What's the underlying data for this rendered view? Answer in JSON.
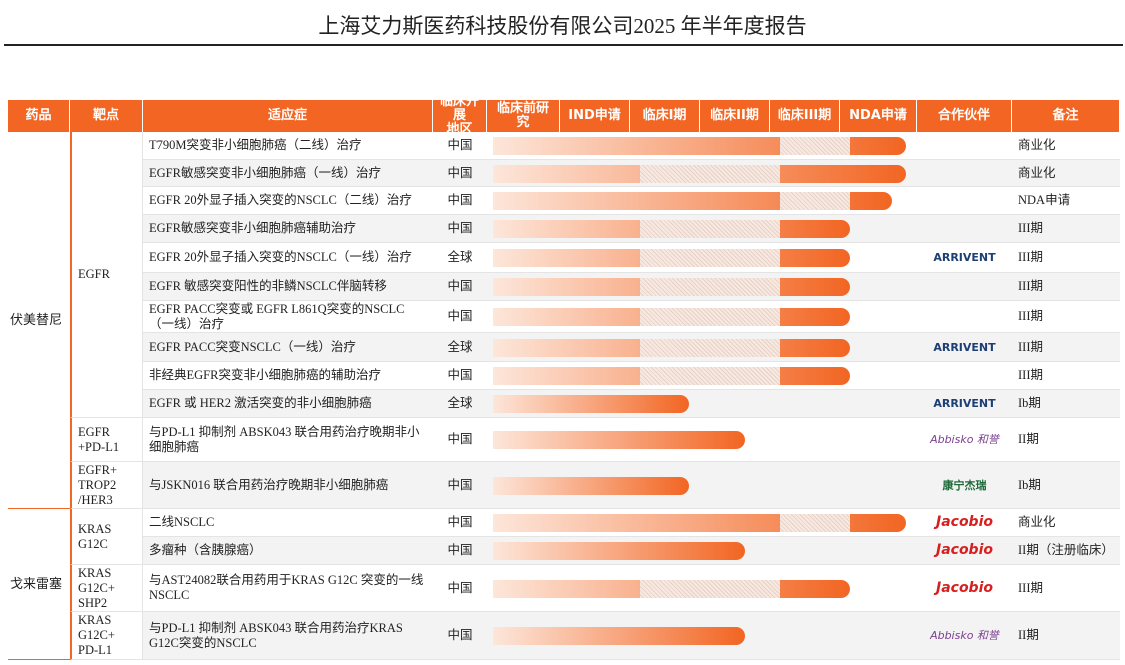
{
  "header": {
    "title": "上海艾力斯医药科技股份有限公司2025 年半年度报告"
  },
  "table": {
    "columns": [
      "药品",
      "靶点",
      "适应症",
      "临床开展\n地区",
      "临床前研究",
      "IND申请",
      "临床I期",
      "临床II期",
      "临床III期",
      "NDA申请",
      "合作伙伴",
      "备注"
    ],
    "drugs": [
      {
        "name": "伏美替尼",
        "targets": [
          {
            "name": "EGFR",
            "rows": [
              {
                "indication": "T790M突变非小细胞肺癌（二线）治疗",
                "region": "中国",
                "progress": 5.9,
                "hatch": [
                  4.1,
                  5.1
                ],
                "note": "商业化"
              },
              {
                "indication": "EGFR敏感突变非小细胞肺癌（一线）治疗",
                "region": "中国",
                "progress": 5.9,
                "hatch": [
                  2.1,
                  4.1
                ],
                "note": "商业化"
              },
              {
                "indication": "EGFR 20外显子插入突变的NSCLC（二线）治疗",
                "region": "中国",
                "progress": 5.7,
                "hatch": [
                  4.1,
                  5.1
                ],
                "note": "NDA申请"
              },
              {
                "indication": "EGFR敏感突变非小细胞肺癌辅助治疗",
                "region": "中国",
                "progress": 5.1,
                "hatch": [
                  2.1,
                  4.1
                ],
                "note": "III期"
              },
              {
                "indication": "EGFR 20外显子插入突变的NSCLC（一线）治疗",
                "region": "全球",
                "progress": 5.1,
                "hatch": [
                  2.1,
                  4.1
                ],
                "partner": "ARRIVENT",
                "note": "III期"
              },
              {
                "indication": "EGFR 敏感突变阳性的非鳞NSCLC伴脑转移",
                "region": "中国",
                "progress": 5.1,
                "hatch": [
                  2.1,
                  4.1
                ],
                "note": "III期"
              },
              {
                "indication": "EGFR PACC突变或 EGFR L861Q突变的NSCLC（一线）治疗",
                "region": "中国",
                "progress": 5.1,
                "hatch": [
                  2.1,
                  4.1
                ],
                "note": "III期"
              },
              {
                "indication": "EGFR PACC突变NSCLC（一线）治疗",
                "region": "全球",
                "progress": 5.1,
                "hatch": [
                  2.1,
                  4.1
                ],
                "partner": "ARRIVENT",
                "note": "III期"
              },
              {
                "indication": "非经典EGFR突变非小细胞肺癌的辅助治疗",
                "region": "中国",
                "progress": 5.1,
                "hatch": [
                  2.1,
                  4.1
                ],
                "note": "III期"
              },
              {
                "indication": "EGFR 或 HER2 激活突变的非小细胞肺癌",
                "region": "全球",
                "progress": 2.8,
                "partner": "ARRIVENT",
                "note": "Ib期"
              }
            ]
          },
          {
            "name": "EGFR\n+PD-L1",
            "rows": [
              {
                "indication": "与PD-L1 抑制剂 ABSK043 联合用药治疗晚期非小细胞肺癌",
                "region": "中国",
                "progress": 3.6,
                "partner": "Abbisko 和誉",
                "note": "II期"
              }
            ]
          },
          {
            "name": "EGFR+\nTROP2\n/HER3",
            "rows": [
              {
                "indication": "与JSKN016 联合用药治疗晚期非小细胞肺癌",
                "region": "中国",
                "progress": 2.8,
                "partner": "康宁杰瑞",
                "note": "Ib期"
              }
            ]
          }
        ]
      },
      {
        "name": "戈来雷塞",
        "targets": [
          {
            "name": "KRAS\nG12C",
            "rows": [
              {
                "indication": "二线NSCLC",
                "region": "中国",
                "progress": 5.9,
                "hatch": [
                  4.1,
                  5.1
                ],
                "partner": "Jacobio",
                "note": "商业化"
              },
              {
                "indication": "多瘤种（含胰腺癌）",
                "region": "中国",
                "progress": 3.6,
                "partner": "Jacobio",
                "note": "II期（注册临床）"
              }
            ]
          },
          {
            "name": "KRAS\nG12C+\nSHP2",
            "rows": [
              {
                "indication": "与AST24082联合用药用于KRAS G12C 突变的一线NSCLC",
                "region": "中国",
                "progress": 5.1,
                "hatch": [
                  2.1,
                  4.1
                ],
                "partner": "Jacobio",
                "note": "III期"
              }
            ]
          },
          {
            "name": "KRAS\nG12C+\nPD-L1",
            "rows": [
              {
                "indication": "与PD-L1 抑制剂 ABSK043 联合用药治疗KRAS G12C突变的NSCLC",
                "region": "中国",
                "progress": 3.6,
                "partner": "Abbisko 和誉",
                "note": "II期"
              }
            ]
          }
        ]
      }
    ]
  }
}
